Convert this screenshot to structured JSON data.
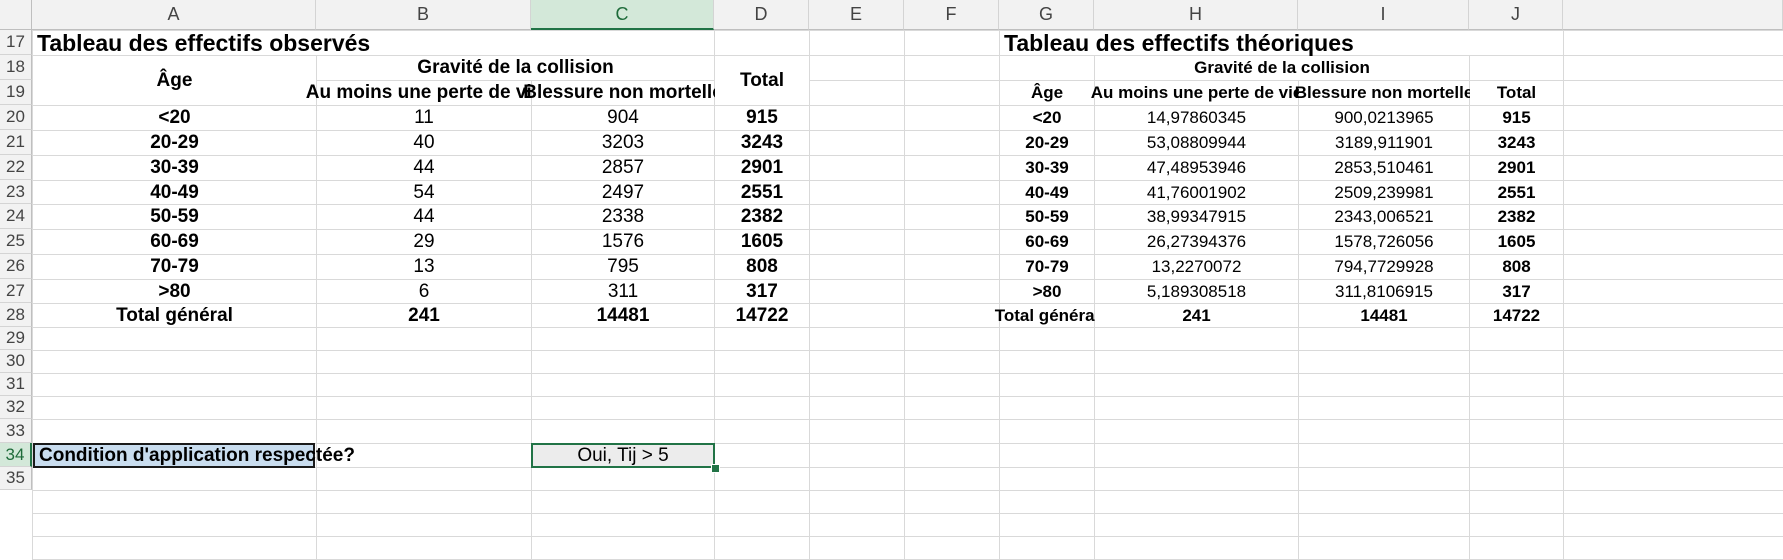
{
  "columns": [
    "A",
    "B",
    "C",
    "D",
    "E",
    "F",
    "G",
    "H",
    "I",
    "J"
  ],
  "rows": [
    "17",
    "18",
    "19",
    "20",
    "21",
    "22",
    "23",
    "24",
    "25",
    "26",
    "27",
    "28",
    "29",
    "30",
    "31",
    "32",
    "33",
    "34",
    "35"
  ],
  "observed": {
    "title": "Tableau des effectifs observés",
    "age_header": "Âge",
    "group_header": "Gravité de la collision",
    "col1_header": "Au moins une perte de vie",
    "col2_header": "Blessure non mortelle",
    "total_header": "Total",
    "rows": [
      {
        "age": "<20",
        "a": "11",
        "b": "904",
        "total": "915"
      },
      {
        "age": "20-29",
        "a": "40",
        "b": "3203",
        "total": "3243"
      },
      {
        "age": "30-39",
        "a": "44",
        "b": "2857",
        "total": "2901"
      },
      {
        "age": "40-49",
        "a": "54",
        "b": "2497",
        "total": "2551"
      },
      {
        "age": "50-59",
        "a": "44",
        "b": "2338",
        "total": "2382"
      },
      {
        "age": "60-69",
        "a": "29",
        "b": "1576",
        "total": "1605"
      },
      {
        "age": "70-79",
        "a": "13",
        "b": "795",
        "total": "808"
      },
      {
        "age": ">80",
        "a": "6",
        "b": "311",
        "total": "317"
      }
    ],
    "grand_total": {
      "label": "Total général",
      "a": "241",
      "b": "14481",
      "total": "14722"
    }
  },
  "theoretical": {
    "title": "Tableau des effectifs théoriques",
    "age_header": "Âge",
    "group_header": "Gravité de la collision",
    "col1_header": "Au moins une perte de vie",
    "col2_header": "Blessure non mortelle",
    "total_header": "Total",
    "rows": [
      {
        "age": "<20",
        "a": "14,97860345",
        "b": "900,0213965",
        "total": "915"
      },
      {
        "age": "20-29",
        "a": "53,08809944",
        "b": "3189,911901",
        "total": "3243"
      },
      {
        "age": "30-39",
        "a": "47,48953946",
        "b": "2853,510461",
        "total": "2901"
      },
      {
        "age": "40-49",
        "a": "41,76001902",
        "b": "2509,239981",
        "total": "2551"
      },
      {
        "age": "50-59",
        "a": "38,99347915",
        "b": "2343,006521",
        "total": "2382"
      },
      {
        "age": "60-69",
        "a": "26,27394376",
        "b": "1578,726056",
        "total": "1605"
      },
      {
        "age": "70-79",
        "a": "13,2270072",
        "b": "794,7729928",
        "total": "808"
      },
      {
        "age": ">80",
        "a": "5,189308518",
        "b": "311,8106915",
        "total": "317"
      }
    ],
    "grand_total": {
      "label": "Total général",
      "a": "241",
      "b": "14481",
      "total": "14722"
    }
  },
  "condition": {
    "label": "Condition d'application respectée?",
    "result": "Oui, Tij > 5"
  },
  "selection": {
    "column": "C",
    "row": "34"
  },
  "colors": {
    "selection": "#217346",
    "header_bg": "#f2f2f2",
    "label_fill": "#c9ddef",
    "result_fill": "#ececec"
  }
}
